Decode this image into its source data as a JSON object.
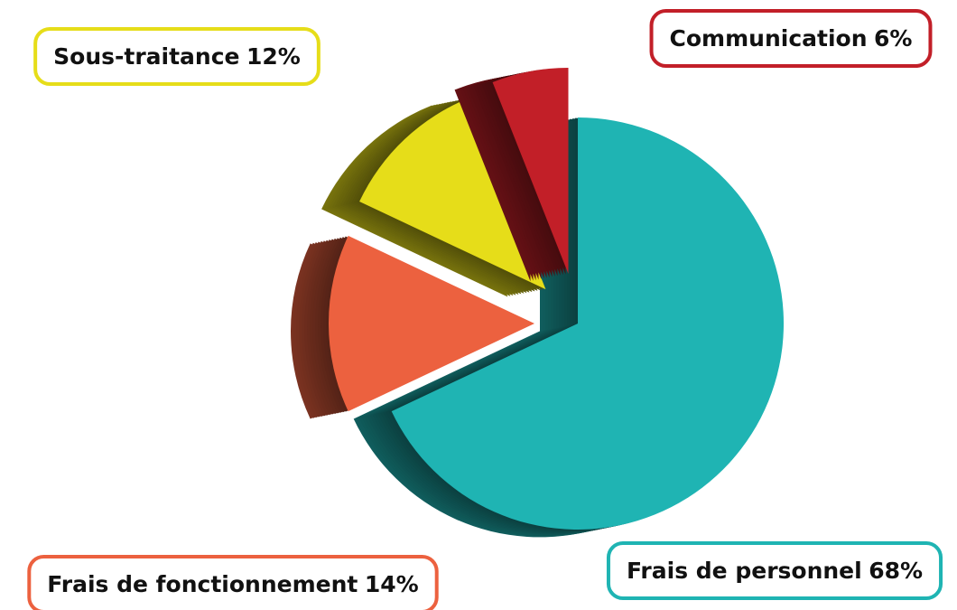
{
  "chart_data": {
    "type": "pie",
    "categories": [
      "Frais de personnel",
      "Frais de fonctionnement",
      "Sous-traitance",
      "Communication"
    ],
    "values": [
      68,
      14,
      12,
      6
    ],
    "value_labels": [
      "68%",
      "14%",
      "12%",
      "6%"
    ],
    "colors": [
      "#1fb4b3",
      "#ec613f",
      "#e6dd19",
      "#c21f28"
    ]
  }
}
